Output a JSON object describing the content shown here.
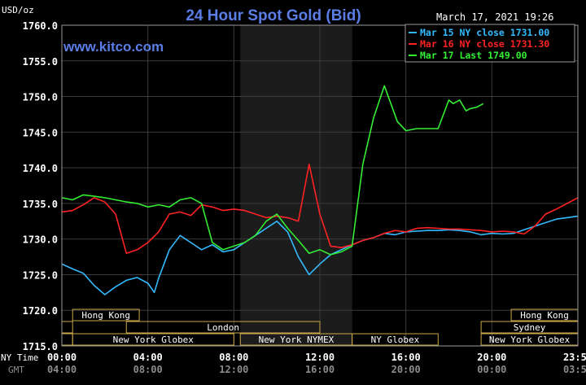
{
  "chart_data": {
    "type": "line",
    "title": "24 Hour Spot Gold (Bid)",
    "brand": "www.kitco.com",
    "datetime": "March 17, 2021 19:26",
    "ylabel": "USD/oz",
    "ylim": [
      1715,
      1760
    ],
    "y_ticks": [
      "1760.0",
      "1755.0",
      "1750.0",
      "1745.0",
      "1740.0",
      "1735.0",
      "1730.0",
      "1725.0",
      "1720.0",
      "1715.0"
    ],
    "x_ticks_ny": [
      "00:00",
      "04:00",
      "08:00",
      "12:00",
      "16:00",
      "20:00",
      "23:59"
    ],
    "x_ticks_gmt": [
      "04:00",
      "08:00",
      "12:00",
      "16:00",
      "20:00",
      "00:00",
      "03:59"
    ],
    "x_row_labels": {
      "ny": "NY Time",
      "gmt": "GMT"
    },
    "legend": {
      "placement": "top-right",
      "entries": [
        {
          "label": "Mar 15 NY close 1731.00",
          "color": "#33bbff"
        },
        {
          "label": "Mar 16 NY close 1731.30",
          "color": "#ff2222"
        },
        {
          "label": "Mar 17 Last 1749.00",
          "color": "#33ee33"
        }
      ]
    },
    "market_sessions": [
      {
        "label": "Hong Kong",
        "row": 0,
        "start": 0.5,
        "end": 3.6
      },
      {
        "label": "Hong Kong",
        "row": 0,
        "start": 20.9,
        "end": 24
      },
      {
        "label": "",
        "row": 1,
        "start": 0,
        "end": 0.5
      },
      {
        "label": "London",
        "row": 1,
        "start": 3,
        "end": 12
      },
      {
        "label": "Sydney",
        "row": 1,
        "start": 19.5,
        "end": 24
      },
      {
        "label": "",
        "row": 2,
        "start": 0,
        "end": 0.5
      },
      {
        "label": "New York Globex",
        "row": 2,
        "start": 0.5,
        "end": 8
      },
      {
        "label": "New York NYMEX",
        "row": 2,
        "start": 8.3,
        "end": 13.5
      },
      {
        "label": "NY Globex",
        "row": 2,
        "start": 13.5,
        "end": 17.5
      },
      {
        "label": "New York Globex",
        "row": 2,
        "start": 19.5,
        "end": 24
      }
    ],
    "shaded_range": [
      8.3,
      13.5
    ],
    "series": [
      {
        "name": "Mar 15 NY close 1731.00",
        "color": "#33bbff",
        "x": [
          0,
          0.5,
          1,
          1.5,
          2,
          2.5,
          3,
          3.5,
          4,
          4.3,
          4.5,
          5,
          5.5,
          6,
          6.5,
          7,
          7.5,
          8,
          8.5,
          9,
          9.5,
          10,
          10.5,
          11,
          11.5,
          12,
          12.5,
          13,
          13.5,
          14,
          14.5,
          15,
          15.5,
          16,
          16.5,
          17,
          17.5,
          18,
          18.5,
          19,
          19.5,
          20,
          20.5,
          21,
          21.5,
          22,
          22.5,
          23,
          23.5,
          24
        ],
        "y": [
          1726.5,
          1725.8,
          1725.2,
          1723.5,
          1722.2,
          1723.3,
          1724.2,
          1724.6,
          1723.8,
          1722.5,
          1724.5,
          1728.5,
          1730.5,
          1729.5,
          1728.5,
          1729.2,
          1728.2,
          1728.5,
          1729.5,
          1730.5,
          1731.5,
          1732.5,
          1731.0,
          1727.5,
          1725.0,
          1726.5,
          1727.8,
          1728.5,
          1729.2,
          1729.8,
          1730.2,
          1730.8,
          1730.6,
          1731.0,
          1731.1,
          1731.2,
          1731.2,
          1731.3,
          1731.2,
          1731.0,
          1730.6,
          1730.8,
          1730.7,
          1730.8,
          1731.3,
          1731.8,
          1732.3,
          1732.8,
          1733.0,
          1733.2
        ]
      },
      {
        "name": "Mar 16 NY close 1731.30",
        "color": "#ff2222",
        "x": [
          0,
          0.5,
          1,
          1.5,
          2,
          2.5,
          3,
          3.5,
          4,
          4.5,
          5,
          5.5,
          6,
          6.5,
          7,
          7.5,
          8,
          8.5,
          9,
          9.5,
          10,
          10.5,
          11,
          11.5,
          12,
          12.5,
          13,
          13.5,
          14,
          14.5,
          15,
          15.5,
          16,
          16.5,
          17,
          17.5,
          18,
          18.5,
          19,
          19.5,
          20,
          20.5,
          21,
          21.5,
          22,
          22.5,
          23,
          23.5,
          24
        ],
        "y": [
          1733.8,
          1734.0,
          1734.8,
          1735.8,
          1735.2,
          1733.5,
          1728.0,
          1728.5,
          1729.5,
          1731.0,
          1733.5,
          1733.8,
          1733.3,
          1734.8,
          1734.5,
          1734.0,
          1734.2,
          1734.0,
          1733.5,
          1733.0,
          1733.2,
          1733.0,
          1732.5,
          1740.5,
          1733.5,
          1729.0,
          1728.8,
          1729.2,
          1729.8,
          1730.2,
          1730.8,
          1731.2,
          1731.0,
          1731.5,
          1731.6,
          1731.5,
          1731.4,
          1731.4,
          1731.3,
          1731.2,
          1731.0,
          1731.1,
          1731.0,
          1730.7,
          1731.8,
          1733.5,
          1734.2,
          1735.0,
          1735.8
        ]
      },
      {
        "name": "Mar 17 Last 1749.00",
        "color": "#33ee33",
        "x": [
          0,
          0.5,
          1,
          1.5,
          2,
          2.5,
          3,
          3.5,
          4,
          4.5,
          5,
          5.5,
          6,
          6.5,
          7,
          7.5,
          8,
          8.5,
          9,
          9.5,
          10,
          10.5,
          11,
          11.5,
          12,
          12.5,
          13,
          13.5,
          14,
          14.5,
          15,
          15.3,
          15.6,
          16,
          16.5,
          17,
          17.5,
          18,
          18.2,
          18.5,
          18.8,
          19,
          19.3,
          19.6
        ],
        "y": [
          1735.8,
          1735.5,
          1736.2,
          1736.0,
          1735.8,
          1735.5,
          1735.2,
          1735.0,
          1734.5,
          1734.8,
          1734.5,
          1735.5,
          1735.8,
          1735.0,
          1729.5,
          1728.5,
          1729.0,
          1729.5,
          1730.5,
          1732.5,
          1733.5,
          1731.5,
          1729.8,
          1728.0,
          1728.5,
          1727.8,
          1728.2,
          1729.0,
          1740.5,
          1747.0,
          1751.5,
          1749.0,
          1746.5,
          1745.2,
          1745.5,
          1745.5,
          1745.5,
          1749.5,
          1749.0,
          1749.5,
          1748.0,
          1748.3,
          1748.5,
          1749.0
        ]
      }
    ]
  }
}
